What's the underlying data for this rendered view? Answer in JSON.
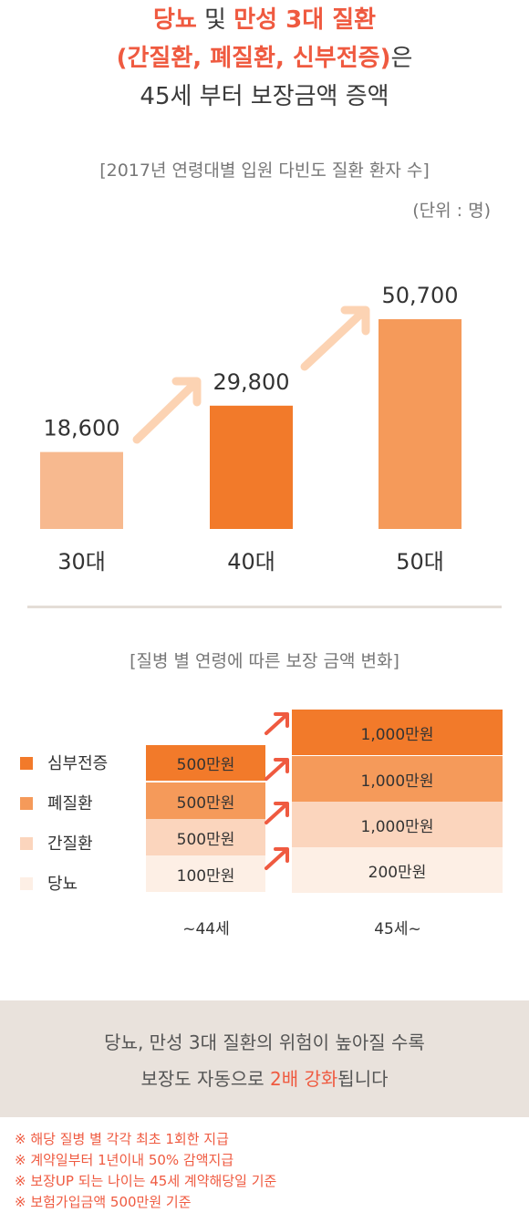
{
  "header": {
    "line1_a": "당뇨",
    "line1_b": " 및 ",
    "line1_c": "만성 3대 질환",
    "line2_a": "(간질환, 폐질환, 신부전증)",
    "line2_b": "은",
    "line3": "45세 부터 보장금액 증액"
  },
  "chart1": {
    "subtitle": "[2017년 연령대별 입원 다빈도 질환 환자 수]",
    "unit": "(단위 : 명)"
  },
  "chart_data": [
    {
      "type": "bar",
      "title": "[2017년 연령대별 입원 다빈도 질환 환자 수]",
      "unit": "(단위 : 명)",
      "categories": [
        "30대",
        "40대",
        "50대"
      ],
      "values": [
        18600,
        29800,
        50700
      ],
      "value_labels": [
        "18,600",
        "29,800",
        "50,700"
      ],
      "colors": [
        "#f7b98f",
        "#f27a2a",
        "#f59a5a"
      ],
      "grid": false
    },
    {
      "type": "table",
      "title": "[질병 별 연령에 따른 보장 금액 변화]",
      "columns": [
        "~44세",
        "45세~"
      ],
      "rows": [
        {
          "name": "심부전증",
          "color": "#f27a2a",
          "values": [
            "500만원",
            "1,000만원"
          ]
        },
        {
          "name": "폐질환",
          "color": "#f59a5a",
          "values": [
            "500만원",
            "1,000만원"
          ]
        },
        {
          "name": "간질환",
          "color": "#fbd5bd",
          "values": [
            "500만원",
            "1,000만원"
          ]
        },
        {
          "name": "당뇨",
          "color": "#fdefe5",
          "values": [
            "100만원",
            "200만원"
          ]
        }
      ]
    }
  ],
  "chart2": {
    "subtitle": "[질병 별 연령에 따른 보장 금액 변화]",
    "col1": "~44세",
    "col2": "45세~"
  },
  "banner": {
    "line1": "당뇨, 만성 3대 질환의 위험이 높아질 수록",
    "line2_a": "보장도 자동으로 ",
    "line2_b": "2배 강화",
    "line2_c": "됩니다"
  },
  "notes": [
    "※ 해당 질병 별 각각 최초 1회한 지급",
    "※ 계약일부터 1년이내 50% 감액지급",
    "※ 보장UP 되는 나이는 45세 계약해당일 기준",
    "※ 보험가입금액 500만원 기준"
  ]
}
